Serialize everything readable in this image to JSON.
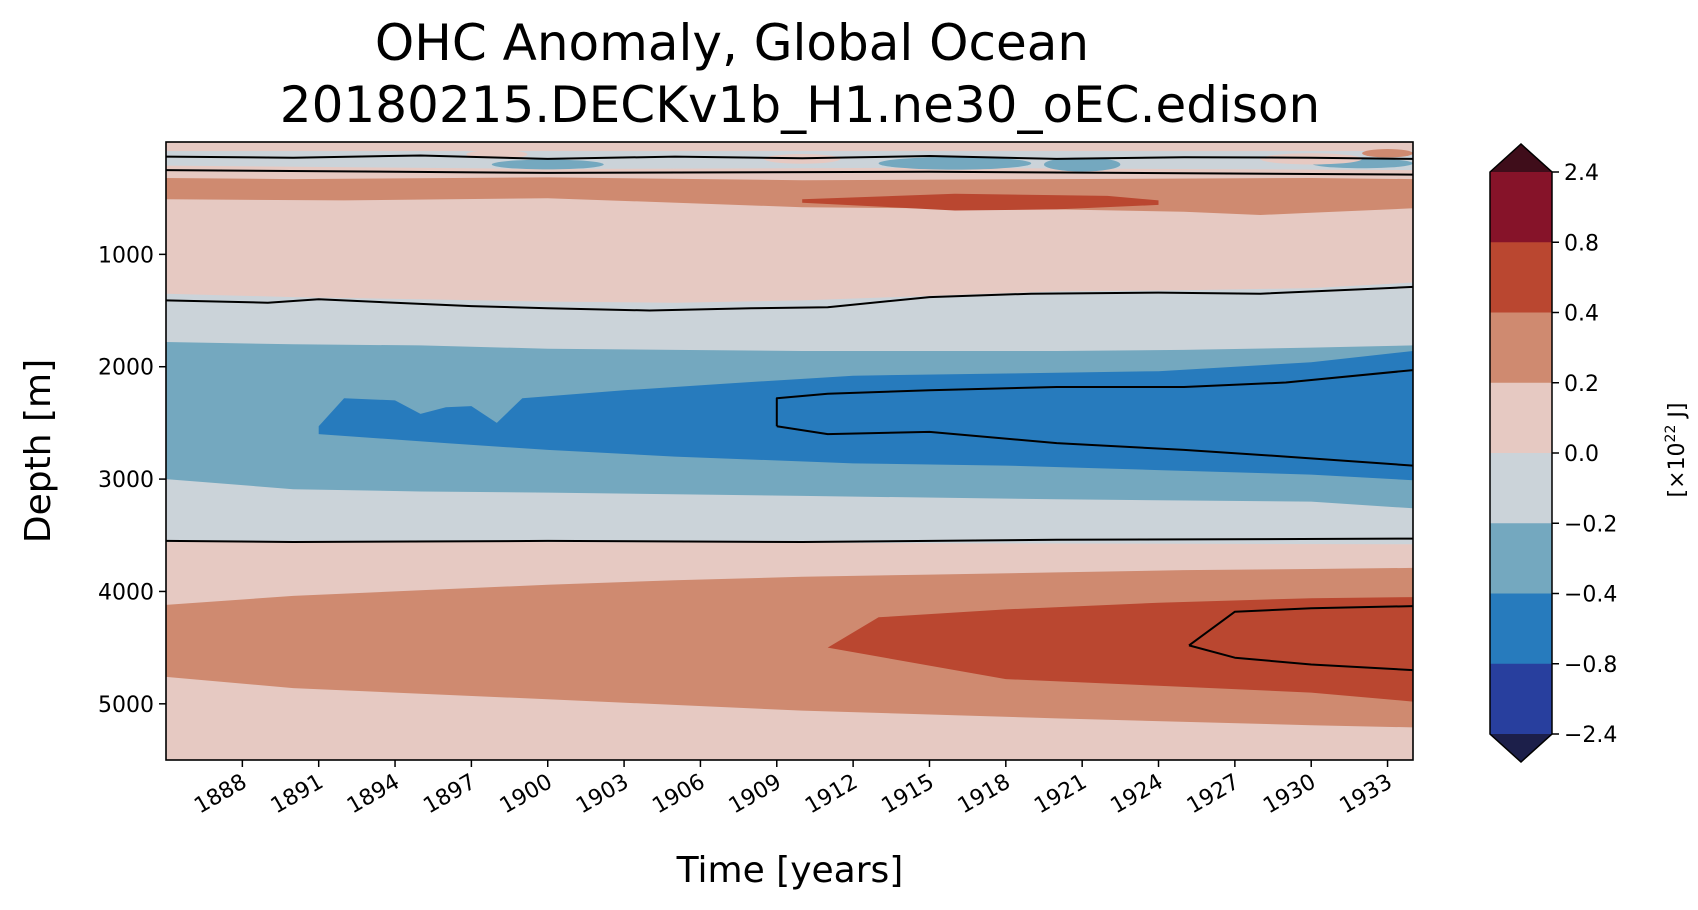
{
  "chart_data": {
    "type": "heatmap",
    "title_line1": "OHC Anomaly, Global Ocean",
    "title_line2": "20180215.DECKv1b_H1.ne30_oEC.edison",
    "xlabel": "Time [years]",
    "ylabel": "Depth [m]",
    "xlim": [
      1885,
      1934
    ],
    "ylim": [
      5500,
      0
    ],
    "x_ticks": [
      1888,
      1891,
      1894,
      1897,
      1900,
      1903,
      1906,
      1909,
      1912,
      1915,
      1918,
      1921,
      1924,
      1927,
      1930,
      1933
    ],
    "y_ticks": [
      1000,
      2000,
      3000,
      4000,
      5000
    ],
    "colorbar": {
      "label_prefix": "[×10",
      "label_exp": "22",
      "label_suffix": " J]",
      "levels": [
        "2.4",
        "0.8",
        "0.4",
        "0.2",
        "0.0",
        "−0.2",
        "−0.4",
        "−0.8",
        "−2.4"
      ],
      "colors": [
        "#861329",
        "#ba4730",
        "#cf8a70",
        "#e6c9c2",
        "#cbd3d9",
        "#74a8bf",
        "#277bbd",
        "#283f9e"
      ],
      "extend_max_color": "#3f0d1a",
      "extend_min_color": "#1c1f4a"
    },
    "background_color": "#e6c9c2",
    "bands": [
      {
        "level": "-0.2 to 0.0",
        "color": "#cbd3d9",
        "top": [
          [
            1885,
            80
          ],
          [
            1934,
            80
          ]
        ],
        "bottom": [
          [
            1885,
            210
          ],
          [
            1900,
            240
          ],
          [
            1915,
            230
          ],
          [
            1934,
            250
          ]
        ]
      },
      {
        "level": "0.2 to 0.4",
        "color": "#cf8a70",
        "top": [
          [
            1885,
            320
          ],
          [
            1890,
            330
          ],
          [
            1900,
            315
          ],
          [
            1910,
            340
          ],
          [
            1920,
            330
          ],
          [
            1930,
            320
          ],
          [
            1934,
            330
          ]
        ],
        "bottom": [
          [
            1885,
            510
          ],
          [
            1892,
            520
          ],
          [
            1900,
            500
          ],
          [
            1910,
            580
          ],
          [
            1920,
            600
          ],
          [
            1925,
            620
          ],
          [
            1928,
            650
          ],
          [
            1930,
            630
          ],
          [
            1934,
            590
          ]
        ]
      },
      {
        "level": "0.4 to 0.8",
        "color": "#ba4730",
        "top": [
          [
            1910,
            510
          ],
          [
            1916,
            460
          ],
          [
            1922,
            480
          ],
          [
            1924,
            520
          ]
        ],
        "bottom": [
          [
            1924,
            560
          ],
          [
            1920,
            600
          ],
          [
            1916,
            610
          ],
          [
            1910,
            540
          ]
        ]
      },
      {
        "level": "-0.2 to 0.0",
        "color": "#cbd3d9",
        "top": [
          [
            1885,
            1350
          ],
          [
            1890,
            1380
          ],
          [
            1895,
            1400
          ],
          [
            1900,
            1420
          ],
          [
            1905,
            1430
          ],
          [
            1910,
            1410
          ],
          [
            1915,
            1370
          ],
          [
            1920,
            1330
          ],
          [
            1925,
            1320
          ],
          [
            1930,
            1300
          ],
          [
            1934,
            1250
          ]
        ],
        "bottom": [
          [
            1885,
            3560
          ],
          [
            1900,
            3560
          ],
          [
            1915,
            3570
          ],
          [
            1934,
            3580
          ]
        ]
      },
      {
        "level": "-0.4 to -0.2",
        "color": "#74a8bf",
        "top": [
          [
            1885,
            1780
          ],
          [
            1890,
            1800
          ],
          [
            1895,
            1810
          ],
          [
            1900,
            1840
          ],
          [
            1905,
            1850
          ],
          [
            1910,
            1860
          ],
          [
            1915,
            1860
          ],
          [
            1920,
            1860
          ],
          [
            1925,
            1850
          ],
          [
            1930,
            1830
          ],
          [
            1934,
            1810
          ]
        ],
        "bottom": [
          [
            1885,
            3000
          ],
          [
            1890,
            3090
          ],
          [
            1895,
            3110
          ],
          [
            1900,
            3120
          ],
          [
            1910,
            3150
          ],
          [
            1920,
            3180
          ],
          [
            1930,
            3200
          ],
          [
            1934,
            3260
          ]
        ]
      },
      {
        "level": "-0.8 to -0.4",
        "color": "#277bbd",
        "top": [
          [
            1891,
            2530
          ],
          [
            1892,
            2280
          ],
          [
            1894,
            2300
          ],
          [
            1895,
            2420
          ],
          [
            1896,
            2360
          ],
          [
            1897,
            2350
          ],
          [
            1898,
            2500
          ],
          [
            1899,
            2280
          ],
          [
            1903,
            2210
          ],
          [
            1907,
            2150
          ],
          [
            1912,
            2080
          ],
          [
            1918,
            2060
          ],
          [
            1924,
            2040
          ],
          [
            1930,
            1960
          ],
          [
            1934,
            1860
          ]
        ],
        "bottom": [
          [
            1934,
            3010
          ],
          [
            1930,
            2960
          ],
          [
            1924,
            2920
          ],
          [
            1918,
            2880
          ],
          [
            1912,
            2860
          ],
          [
            1905,
            2800
          ],
          [
            1900,
            2740
          ],
          [
            1896,
            2680
          ],
          [
            1891,
            2600
          ]
        ]
      },
      {
        "level": "0.2 to 0.4",
        "color": "#cf8a70",
        "top": [
          [
            1885,
            4120
          ],
          [
            1890,
            4040
          ],
          [
            1895,
            3990
          ],
          [
            1900,
            3940
          ],
          [
            1905,
            3900
          ],
          [
            1910,
            3870
          ],
          [
            1915,
            3850
          ],
          [
            1920,
            3830
          ],
          [
            1925,
            3810
          ],
          [
            1930,
            3800
          ],
          [
            1934,
            3790
          ]
        ],
        "bottom": [
          [
            1885,
            4760
          ],
          [
            1890,
            4860
          ],
          [
            1900,
            4960
          ],
          [
            1910,
            5060
          ],
          [
            1920,
            5130
          ],
          [
            1930,
            5190
          ],
          [
            1934,
            5210
          ]
        ]
      },
      {
        "level": "0.4 to 0.8",
        "color": "#ba4730",
        "top": [
          [
            1911,
            4500
          ],
          [
            1913,
            4230
          ],
          [
            1918,
            4160
          ],
          [
            1924,
            4100
          ],
          [
            1930,
            4060
          ],
          [
            1934,
            4050
          ]
        ],
        "bottom": [
          [
            1934,
            4980
          ],
          [
            1930,
            4900
          ],
          [
            1924,
            4840
          ],
          [
            1918,
            4780
          ],
          [
            1911,
            4500
          ]
        ]
      }
    ],
    "contours": [
      [
        [
          1885,
          130
        ],
        [
          1890,
          140
        ],
        [
          1895,
          120
        ],
        [
          1900,
          150
        ],
        [
          1905,
          130
        ],
        [
          1910,
          145
        ],
        [
          1915,
          125
        ],
        [
          1920,
          150
        ],
        [
          1925,
          135
        ],
        [
          1930,
          140
        ],
        [
          1934,
          150
        ]
      ],
      [
        [
          1885,
          250
        ],
        [
          1900,
          275
        ],
        [
          1915,
          265
        ],
        [
          1934,
          290
        ]
      ],
      [
        [
          1885,
          1410
        ],
        [
          1889,
          1430
        ],
        [
          1891,
          1400
        ],
        [
          1894,
          1430
        ],
        [
          1897,
          1460
        ],
        [
          1900,
          1480
        ],
        [
          1904,
          1500
        ],
        [
          1908,
          1480
        ],
        [
          1911,
          1470
        ],
        [
          1915,
          1380
        ],
        [
          1919,
          1350
        ],
        [
          1924,
          1340
        ],
        [
          1928,
          1350
        ],
        [
          1932,
          1310
        ],
        [
          1934,
          1290
        ]
      ],
      [
        [
          1909,
          2530
        ],
        [
          1909,
          2280
        ],
        [
          1911,
          2240
        ],
        [
          1915,
          2210
        ],
        [
          1920,
          2180
        ],
        [
          1925,
          2180
        ],
        [
          1929,
          2140
        ],
        [
          1934,
          2030
        ]
      ],
      [
        [
          1909,
          2530
        ],
        [
          1911,
          2600
        ],
        [
          1915,
          2580
        ],
        [
          1920,
          2680
        ],
        [
          1925,
          2740
        ],
        [
          1929,
          2800
        ],
        [
          1934,
          2880
        ]
      ],
      [
        [
          1885,
          3550
        ],
        [
          1890,
          3560
        ],
        [
          1900,
          3550
        ],
        [
          1910,
          3560
        ],
        [
          1920,
          3540
        ],
        [
          1934,
          3530
        ]
      ],
      [
        [
          1925.2,
          4480
        ],
        [
          1927,
          4180
        ],
        [
          1930,
          4150
        ],
        [
          1934,
          4130
        ]
      ],
      [
        [
          1925.2,
          4480
        ],
        [
          1927,
          4590
        ],
        [
          1930,
          4650
        ],
        [
          1934,
          4700
        ]
      ]
    ]
  }
}
